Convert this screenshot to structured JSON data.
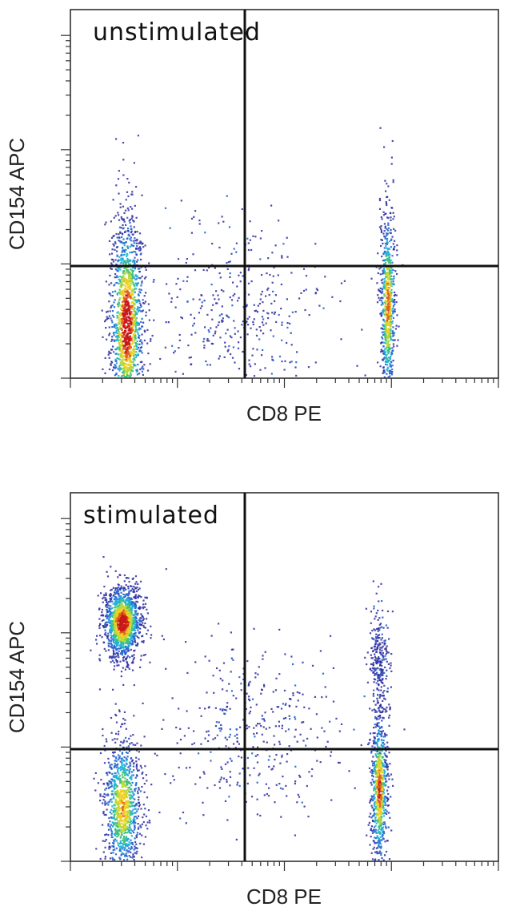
{
  "chart_data": [
    {
      "type": "scatter",
      "title": "unstimulated",
      "xlabel": "CD8 PE",
      "ylabel": "CD154 APC",
      "x_scale": "log",
      "grid": false,
      "quadrant_gates": true,
      "colormap": [
        "#2a2aa0",
        "#2a6cd0",
        "#20b0d8",
        "#40c080",
        "#b8d838",
        "#f0d020",
        "#e06020",
        "#c81818"
      ],
      "populations": [
        {
          "name": "",
          "x_center": 0.13,
          "y_center": 0.15,
          "x_spread": 0.04,
          "y_spread": 0.3,
          "density": 1.0,
          "count": 1400
        },
        {
          "name": "",
          "x_center": 0.74,
          "y_center": 0.2,
          "x_spread": 0.018,
          "y_spread": 0.27,
          "density": 0.8,
          "count": 700
        },
        {
          "name": "",
          "x_center": 0.4,
          "y_center": 0.18,
          "x_spread": 0.2,
          "y_spread": 0.25,
          "density": 0.12,
          "count": 380
        }
      ]
    },
    {
      "type": "scatter",
      "title": "stimulated",
      "xlabel": "CD8 PE",
      "ylabel": "CD154 APC",
      "x_scale": "log",
      "grid": false,
      "quadrant_gates": true,
      "colormap": [
        "#2a2aa0",
        "#2a6cd0",
        "#20b0d8",
        "#40c080",
        "#b8d838",
        "#f0d020",
        "#e06020",
        "#c81818"
      ],
      "populations": [
        {
          "name": "",
          "x_center": 0.12,
          "y_center": 0.65,
          "x_spread": 0.045,
          "y_spread": 0.1,
          "density": 1.0,
          "count": 1300
        },
        {
          "name": "",
          "x_center": 0.12,
          "y_center": 0.15,
          "x_spread": 0.045,
          "y_spread": 0.2,
          "density": 0.7,
          "count": 1000
        },
        {
          "name": "",
          "x_center": 0.72,
          "y_center": 0.2,
          "x_spread": 0.02,
          "y_spread": 0.22,
          "density": 0.85,
          "count": 700
        },
        {
          "name": "",
          "x_center": 0.72,
          "y_center": 0.55,
          "x_spread": 0.025,
          "y_spread": 0.15,
          "density": 0.2,
          "count": 260
        },
        {
          "name": "",
          "x_center": 0.42,
          "y_center": 0.35,
          "x_spread": 0.2,
          "y_spread": 0.25,
          "density": 0.1,
          "count": 380
        }
      ]
    }
  ]
}
